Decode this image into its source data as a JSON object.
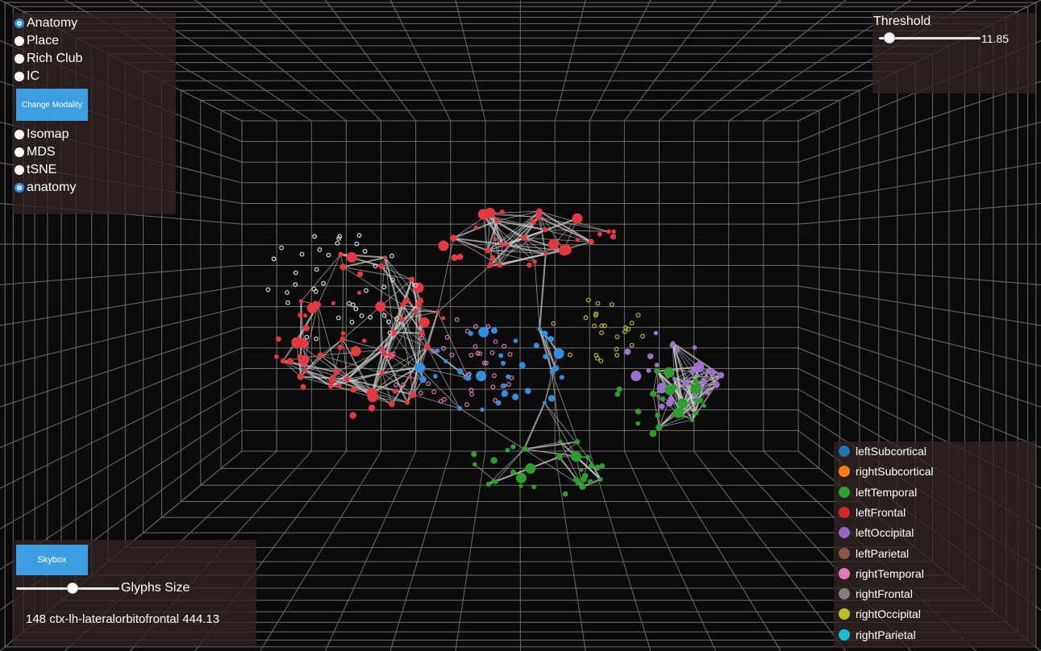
{
  "modality": {
    "options": [
      {
        "label": "Anatomy",
        "selected": true
      },
      {
        "label": "Place",
        "selected": false
      },
      {
        "label": "Rich Club",
        "selected": false
      },
      {
        "label": "IC",
        "selected": false
      }
    ],
    "change_button": "Change Modality",
    "layouts": [
      {
        "label": "Isomap",
        "selected": false
      },
      {
        "label": "MDS",
        "selected": false
      },
      {
        "label": "tSNE",
        "selected": false
      },
      {
        "label": "anatomy",
        "selected": true
      }
    ]
  },
  "threshold": {
    "label": "Threshold",
    "value": "11.85",
    "slider_fraction": 0.1
  },
  "bottom": {
    "skybox_label": "Skybox",
    "glyphs_label": "Glyphs Size",
    "glyphs_fraction": 0.55,
    "status": "148 ctx-lh-lateralorbitofrontal 444.13"
  },
  "legend": [
    {
      "label": "leftSubcortical",
      "color": "#1f77b4"
    },
    {
      "label": "rightSubcortical",
      "color": "#ff7f0e"
    },
    {
      "label": "leftTemporal",
      "color": "#2ca02c"
    },
    {
      "label": "leftFrontal",
      "color": "#d62728"
    },
    {
      "label": "leftOccipital",
      "color": "#9467bd"
    },
    {
      "label": "leftParietal",
      "color": "#8c564b"
    },
    {
      "label": "rightTemporal",
      "color": "#e377c2"
    },
    {
      "label": "rightFrontal",
      "color": "#7f7f7f"
    },
    {
      "label": "rightOccipital",
      "color": "#bcbd22"
    },
    {
      "label": "rightParietal",
      "color": "#17becf"
    }
  ]
}
